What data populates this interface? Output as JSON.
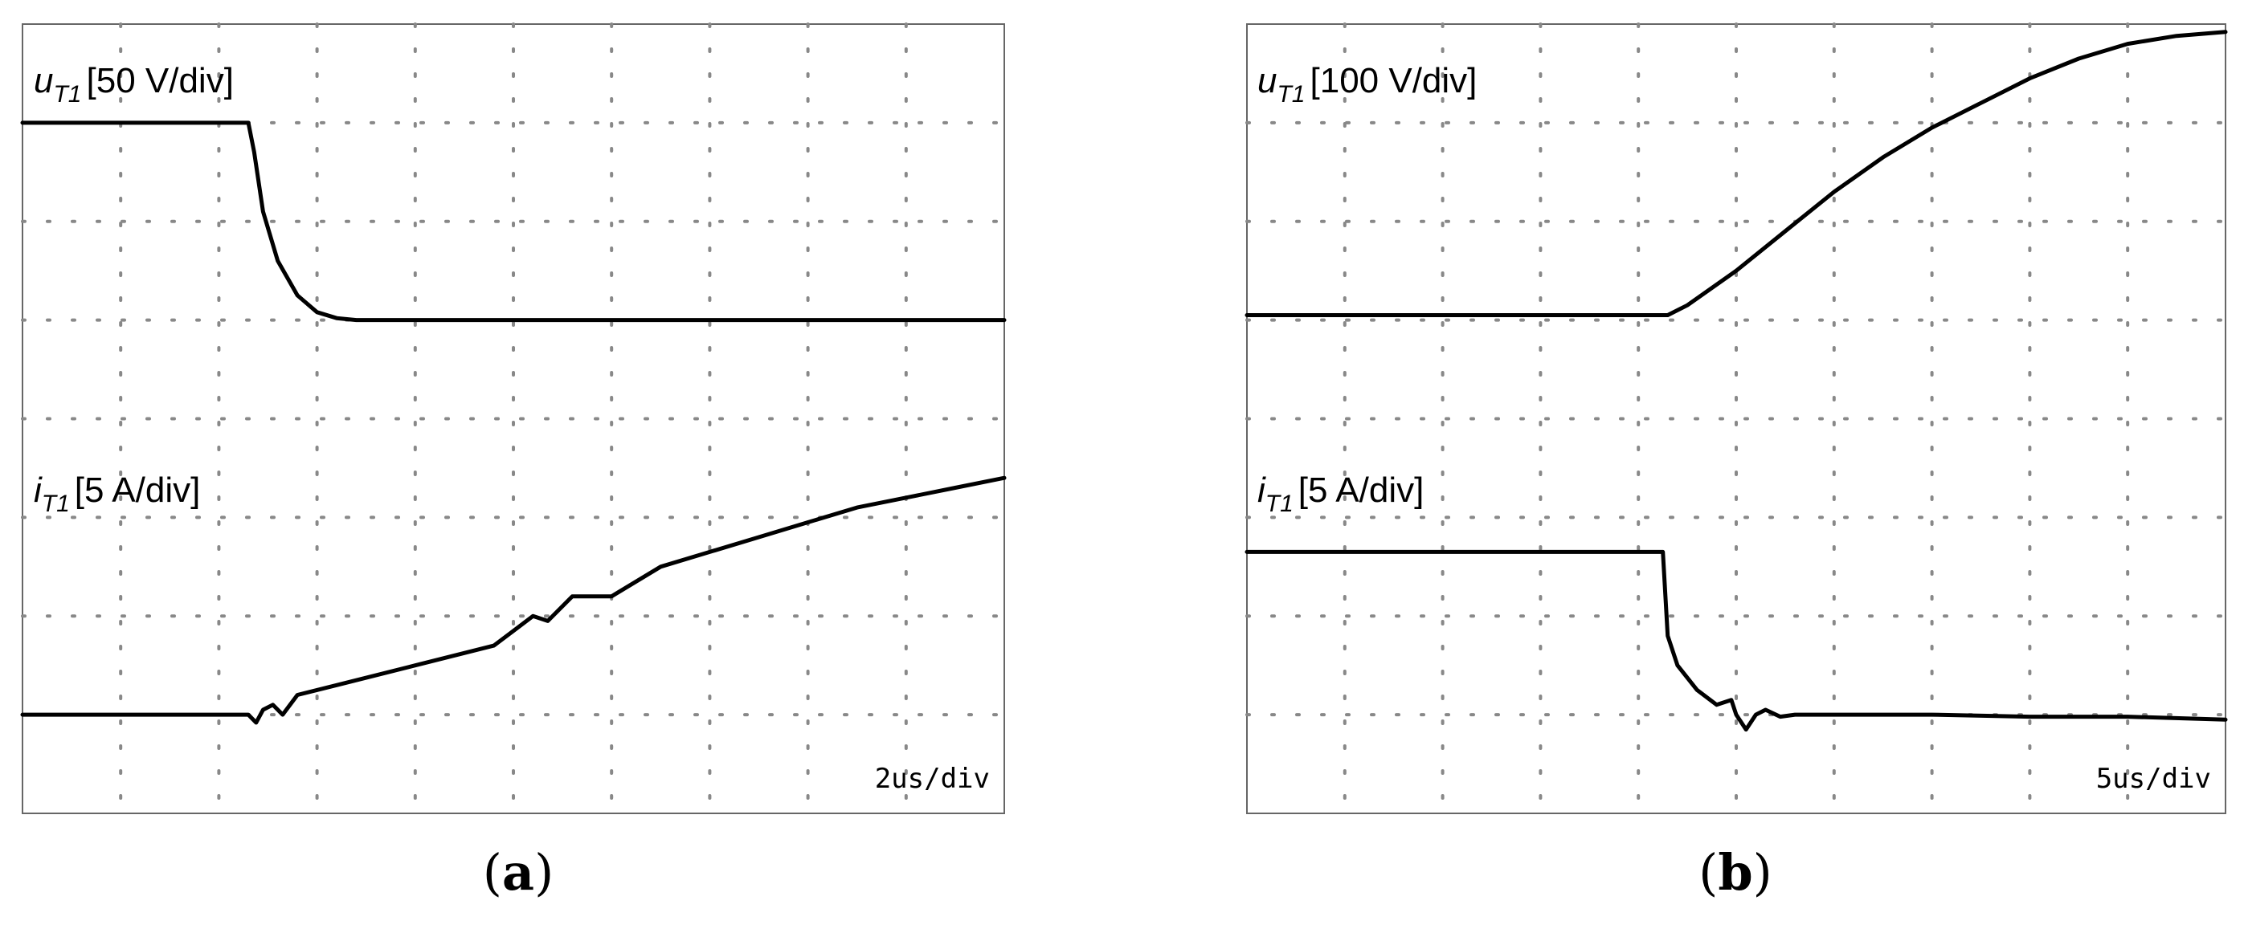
{
  "panels": [
    {
      "caption_open": "(",
      "caption_letter": "a",
      "caption_close": ")",
      "timebase": "2us/div"
    },
    {
      "caption_open": "(",
      "caption_letter": "b",
      "caption_close": ")",
      "timebase": "5us/div"
    }
  ],
  "chart_data": [
    {
      "type": "line",
      "title": "",
      "x_unit": "div",
      "xlim": [
        0,
        10
      ],
      "ylim": [
        0,
        8
      ],
      "grid": true,
      "x_divisions": 10,
      "y_divisions": 8,
      "series": [
        {
          "name": "uT1",
          "label_main": "u",
          "label_sub": "T1",
          "label_scale": "[50 V/div]",
          "color": "#000000",
          "x": [
            0,
            2.3,
            2.36,
            2.45,
            2.6,
            2.8,
            3.0,
            3.2,
            3.4,
            3.6,
            10
          ],
          "y": [
            7.0,
            7.0,
            6.7,
            6.1,
            5.6,
            5.25,
            5.08,
            5.02,
            5.0,
            5.0,
            5.0
          ]
        },
        {
          "name": "iT1",
          "label_main": "i",
          "label_sub": "T1",
          "label_scale": "[5 A/div]",
          "color": "#000000",
          "x": [
            0,
            1.9,
            2.3,
            2.38,
            2.45,
            2.55,
            2.65,
            2.8,
            3.2,
            4.0,
            4.8,
            5.0,
            5.2,
            5.35,
            5.6,
            6.0,
            6.5,
            7.0,
            7.5,
            8.0,
            8.5,
            9.0,
            9.5,
            10
          ],
          "y": [
            1.0,
            1.0,
            1.0,
            0.92,
            1.05,
            1.1,
            1.0,
            1.2,
            1.3,
            1.5,
            1.7,
            1.85,
            2.0,
            1.95,
            2.2,
            2.2,
            2.5,
            2.65,
            2.8,
            2.95,
            3.1,
            3.2,
            3.3,
            3.4
          ]
        }
      ]
    },
    {
      "type": "line",
      "title": "",
      "x_unit": "div",
      "xlim": [
        0,
        10
      ],
      "ylim": [
        0,
        8
      ],
      "grid": true,
      "x_divisions": 10,
      "y_divisions": 8,
      "series": [
        {
          "name": "uT1",
          "label_main": "u",
          "label_sub": "T1",
          "label_scale": "[100 V/div]",
          "color": "#000000",
          "x": [
            0,
            4.3,
            4.5,
            5.0,
            5.5,
            6.0,
            6.5,
            7.0,
            7.5,
            8.0,
            8.5,
            9.0,
            9.5,
            10
          ],
          "y": [
            5.05,
            5.05,
            5.15,
            5.5,
            5.9,
            6.3,
            6.65,
            6.95,
            7.2,
            7.45,
            7.65,
            7.8,
            7.88,
            7.92
          ]
        },
        {
          "name": "iT1",
          "label_main": "i",
          "label_sub": "T1",
          "label_scale": "[5 A/div]",
          "color": "#000000",
          "x": [
            0,
            4.25,
            4.3,
            4.4,
            4.6,
            4.8,
            4.95,
            5.0,
            5.1,
            5.2,
            5.3,
            5.45,
            5.6,
            6.0,
            7.0,
            8.0,
            9.0,
            10
          ],
          "y": [
            2.65,
            2.65,
            1.8,
            1.5,
            1.25,
            1.1,
            1.15,
            1.0,
            0.85,
            1.0,
            1.05,
            0.98,
            1.0,
            1.0,
            1.0,
            0.98,
            0.98,
            0.95
          ]
        }
      ]
    }
  ]
}
